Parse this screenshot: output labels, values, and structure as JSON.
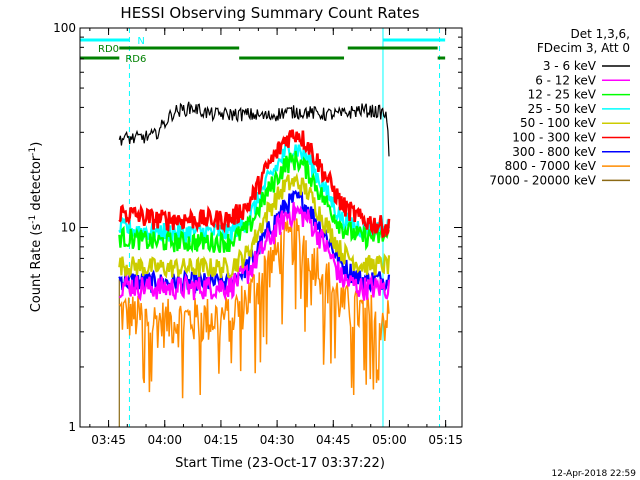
{
  "chart_data": {
    "type": "line",
    "title": "HESSI Observing Summary Count Rates",
    "xlabel": "Start Time (23-Oct-17 03:37:22)",
    "ylabel": "Count Rate (s",
    "ylabel_sup": "-1",
    "ylabel_tail": " detector",
    "ylabel_close": ")",
    "x_unit": "minutes after 03:37:22 (UT, 23-Oct-17)",
    "xlim": [
      0,
      102
    ],
    "ylim": [
      1,
      100
    ],
    "yscale": "log",
    "x_ticks": [
      {
        "t": 7.63,
        "label": "03:45"
      },
      {
        "t": 22.63,
        "label": "04:00"
      },
      {
        "t": 37.63,
        "label": "04:15"
      },
      {
        "t": 52.63,
        "label": "04:30"
      },
      {
        "t": 67.63,
        "label": "04:45"
      },
      {
        "t": 82.63,
        "label": "05:00"
      },
      {
        "t": 97.63,
        "label": "05:15"
      }
    ],
    "y_ticks": [
      {
        "v": 1,
        "label": "1"
      },
      {
        "v": 10,
        "label": "10"
      },
      {
        "v": 100,
        "label": "100"
      }
    ],
    "legend": {
      "placement": "right",
      "header": [
        "Det 1,3,6,",
        "FDecim 3, Att 0"
      ],
      "items": [
        {
          "label": "3 - 6 keV",
          "color": "#000000"
        },
        {
          "label": "6 - 12 keV",
          "color": "#ff00ff"
        },
        {
          "label": "12 - 25 keV",
          "color": "#00ff00"
        },
        {
          "label": "25 - 50 keV",
          "color": "#00ffff"
        },
        {
          "label": "50 - 100 keV",
          "color": "#cccc00"
        },
        {
          "label": "100 - 300 keV",
          "color": "#ff0000"
        },
        {
          "label": "300 - 800 keV",
          "color": "#0000ff"
        },
        {
          "label": "800 - 7000 keV",
          "color": "#ff8c00"
        },
        {
          "label": "7000 - 20000 keV",
          "color": "#8b6914"
        }
      ]
    },
    "series": [
      {
        "name": "3 - 6 keV",
        "color": "#000000",
        "x": [
          10.5,
          15,
          20,
          20.5,
          25,
          30,
          35,
          40,
          45,
          50,
          55,
          60,
          65,
          70,
          75,
          80,
          81.5,
          82,
          82.5
        ],
        "y": [
          28,
          28,
          29,
          30,
          38,
          40,
          37,
          37,
          37,
          36,
          38,
          38,
          37,
          37,
          39,
          38,
          37,
          35,
          22
        ]
      },
      {
        "name": "6 - 12 keV",
        "color": "#ff00ff",
        "x": [
          10.5,
          20,
          30,
          40,
          45,
          50,
          55,
          58,
          61,
          65,
          70,
          75,
          82.5
        ],
        "y": [
          5.2,
          5.0,
          5.0,
          5.1,
          6.0,
          8.5,
          11.5,
          12,
          11,
          8.5,
          5.5,
          5.0,
          5.0
        ]
      },
      {
        "name": "12 - 25 keV",
        "color": "#00ff00",
        "x": [
          10.5,
          20,
          30,
          40,
          45,
          50,
          55,
          58,
          61,
          65,
          70,
          75,
          82.5
        ],
        "y": [
          9.0,
          8.5,
          8.5,
          8.5,
          10,
          15,
          21,
          22,
          19,
          14,
          10,
          9.0,
          9.0
        ]
      },
      {
        "name": "25 - 50 keV",
        "color": "#00ffff",
        "x": [
          10.5,
          20,
          30,
          40,
          45,
          50,
          55,
          58,
          61,
          65,
          70,
          75,
          82.5
        ],
        "y": [
          10,
          9.5,
          9.5,
          9.5,
          11,
          17,
          24,
          25,
          22,
          16,
          11,
          10,
          10
        ]
      },
      {
        "name": "50 - 100 keV",
        "color": "#cccc00",
        "x": [
          10.5,
          20,
          30,
          40,
          45,
          50,
          55,
          58,
          61,
          65,
          70,
          75,
          82.5
        ],
        "y": [
          6.5,
          6.3,
          6.3,
          6.3,
          7.5,
          12,
          16.5,
          17,
          15,
          11,
          7.5,
          6.5,
          6.5
        ]
      },
      {
        "name": "100 - 300 keV",
        "color": "#ff0000",
        "x": [
          10.5,
          20,
          30,
          40,
          45,
          50,
          55,
          58,
          61,
          65,
          70,
          75,
          82.5
        ],
        "y": [
          12,
          11,
          11,
          11,
          13,
          20,
          28,
          30,
          26,
          19,
          13,
          11,
          10
        ]
      },
      {
        "name": "300 - 800 keV",
        "color": "#0000ff",
        "x": [
          10.5,
          20,
          30,
          40,
          45,
          50,
          55,
          58,
          61,
          65,
          70,
          75,
          82.5
        ],
        "y": [
          5.5,
          5.3,
          5.3,
          5.3,
          6.5,
          9.5,
          13,
          14,
          12.5,
          9.5,
          6.5,
          5.5,
          5.5
        ]
      },
      {
        "name": "800 - 7000 keV",
        "color": "#ff8c00",
        "x": [
          10.5,
          20,
          30,
          40,
          45,
          50,
          55,
          58,
          61,
          65,
          70,
          75,
          82.5
        ],
        "y": [
          3.8,
          3.4,
          3.5,
          3.6,
          4.5,
          6.5,
          8.5,
          9.0,
          8.0,
          6.0,
          4.2,
          3.8,
          3.5
        ]
      },
      {
        "name": "7000 - 20000 keV",
        "color": "#8b6914",
        "x": [
          10.5,
          82.5
        ],
        "y": [
          1.0,
          1.0
        ]
      }
    ],
    "vertical_lines": [
      {
        "t": 13.2,
        "style": "dashed",
        "color": "#00ffff"
      },
      {
        "t": 80.9,
        "style": "solid",
        "color": "#00ffff"
      },
      {
        "t": 96.0,
        "style": "dashed",
        "color": "#00ffff"
      }
    ],
    "status_bars": [
      {
        "label": "N",
        "color": "#00ffff",
        "row": 1,
        "segments": [
          [
            0,
            13.2
          ],
          [
            81.0,
            97.5
          ]
        ]
      },
      {
        "label": "RD0",
        "color": "#008000",
        "row": 2,
        "segments": [
          [
            10.5,
            42.5
          ],
          [
            71.5,
            95.5
          ]
        ]
      },
      {
        "label": "RD6",
        "color": "#008000",
        "row": 3,
        "segments": [
          [
            0,
            10.5
          ],
          [
            42.5,
            70.5
          ],
          [
            95.5,
            97.5
          ]
        ]
      }
    ],
    "footer_date": "12-Apr-2018 22:59"
  }
}
